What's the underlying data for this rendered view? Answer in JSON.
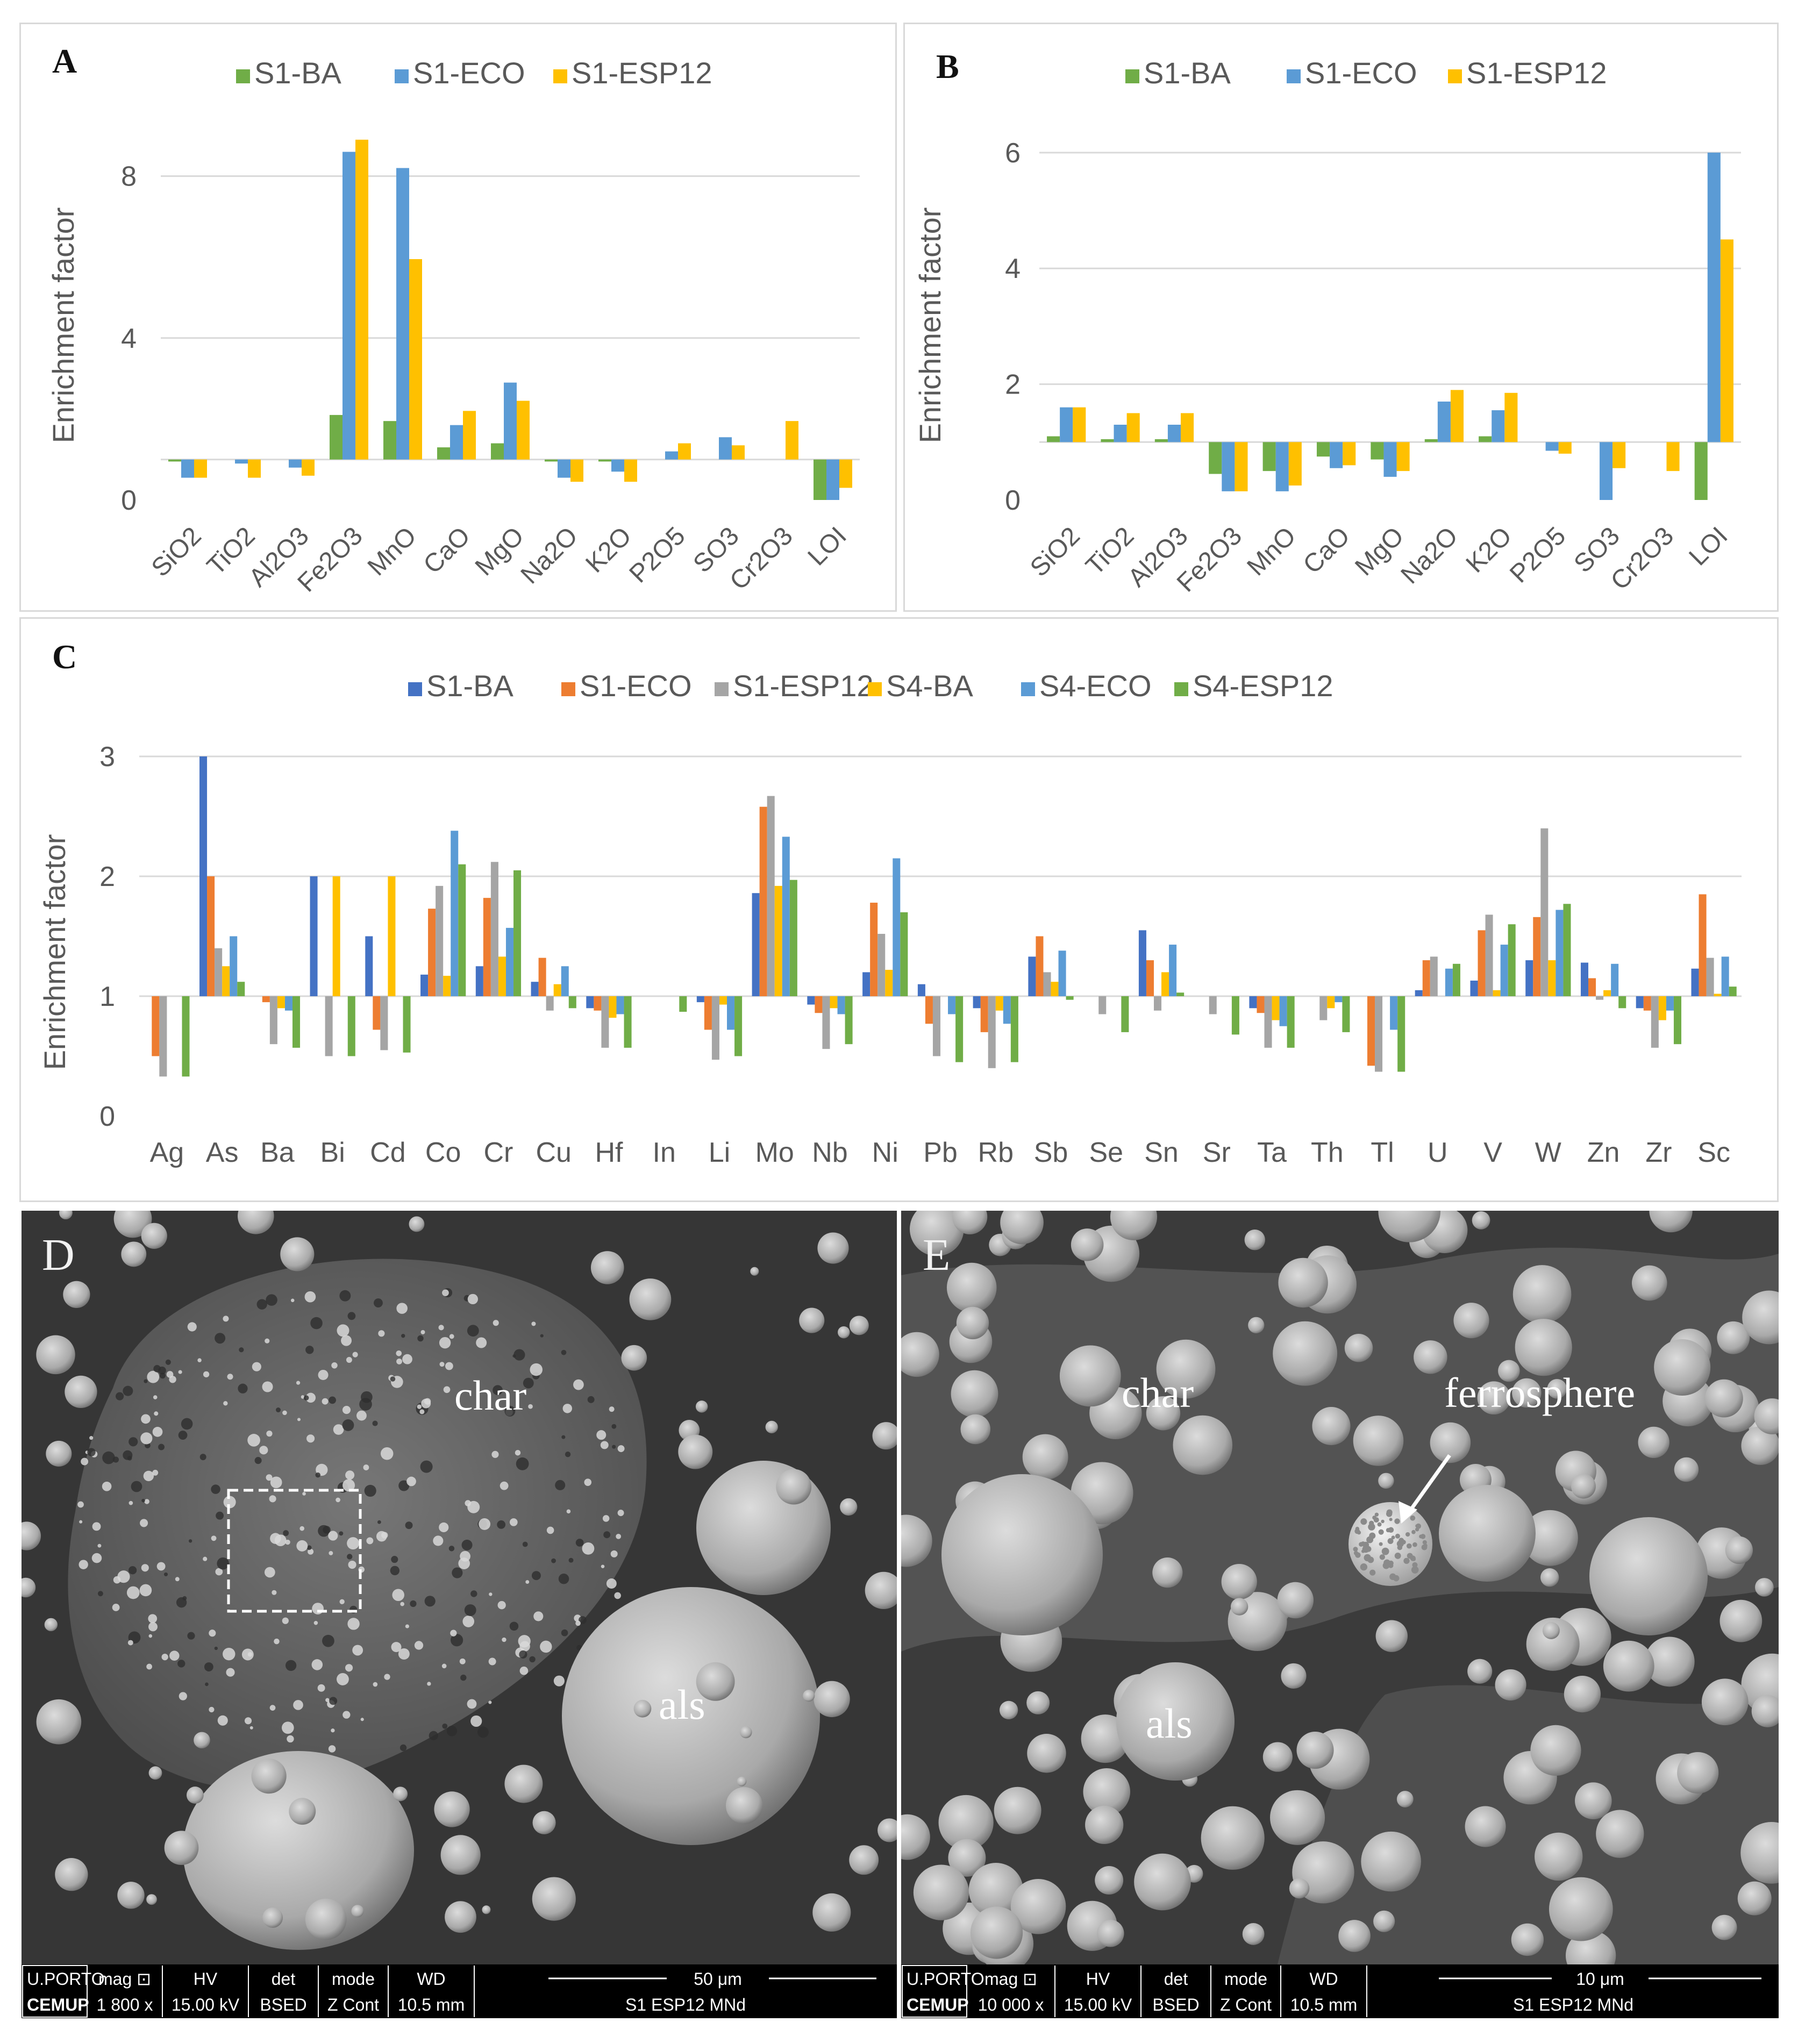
{
  "chart_data": [
    {
      "panel_label": "A",
      "type": "bar",
      "title": "",
      "xlabel": "",
      "ylabel": "Enrichment factor",
      "ylim": [
        0,
        10
      ],
      "yticks": [
        "0",
        "4",
        "8"
      ],
      "baseline": 1,
      "grid": true,
      "legend_position": "top",
      "categories": [
        "SiO2",
        "TiO2",
        "Al2O3",
        "Fe2O3",
        "MnO",
        "CaO",
        "MgO",
        "Na2O",
        "K2O",
        "P2O5",
        "SO3",
        "Cr2O3",
        "LOI"
      ],
      "series": [
        {
          "name": "S1-BA",
          "color": "#70ad47",
          "values": [
            0.95,
            1.0,
            1.0,
            2.1,
            1.95,
            1.3,
            1.4,
            0.95,
            0.95,
            1.0,
            1.0,
            1.0,
            0.0
          ]
        },
        {
          "name": "S1-ECO",
          "color": "#5b9bd5",
          "values": [
            0.55,
            0.9,
            0.8,
            8.6,
            8.2,
            1.85,
            2.9,
            0.55,
            0.7,
            1.2,
            1.55,
            1.0,
            0.0
          ]
        },
        {
          "name": "S1-ESP12",
          "color": "#ffc000",
          "values": [
            0.55,
            0.55,
            0.6,
            8.9,
            5.95,
            2.2,
            2.45,
            0.45,
            0.45,
            1.4,
            1.35,
            1.95,
            0.3
          ]
        }
      ]
    },
    {
      "panel_label": "B",
      "type": "bar",
      "title": "",
      "xlabel": "",
      "ylabel": "Enrichment factor",
      "ylim": [
        0,
        6.5
      ],
      "yticks": [
        "0",
        "2",
        "4",
        "6"
      ],
      "baseline": 1,
      "grid": true,
      "legend_position": "top",
      "categories": [
        "SiO2",
        "TiO2",
        "Al2O3",
        "Fe2O3",
        "MnO",
        "CaO",
        "MgO",
        "Na2O",
        "K2O",
        "P2O5",
        "SO3",
        "Cr2O3",
        "LOI"
      ],
      "series": [
        {
          "name": "S1-BA",
          "color": "#70ad47",
          "values": [
            1.1,
            1.05,
            1.05,
            0.45,
            0.5,
            0.75,
            0.7,
            1.05,
            1.1,
            1.0,
            1.0,
            1.0,
            0.0
          ]
        },
        {
          "name": "S1-ECO",
          "color": "#5b9bd5",
          "values": [
            1.6,
            1.3,
            1.3,
            0.15,
            0.15,
            0.55,
            0.4,
            1.7,
            1.55,
            0.85,
            0.0,
            1.0,
            6.0
          ]
        },
        {
          "name": "S1-ESP12",
          "color": "#ffc000",
          "values": [
            1.6,
            1.5,
            1.5,
            0.15,
            0.25,
            0.6,
            0.5,
            1.9,
            1.85,
            0.8,
            0.55,
            0.5,
            4.5
          ]
        }
      ]
    },
    {
      "panel_label": "C",
      "type": "bar",
      "title": "",
      "xlabel": "",
      "ylabel": "Enrichment factor",
      "ylim": [
        0,
        3
      ],
      "yticks": [
        "0",
        "1",
        "2",
        "3"
      ],
      "baseline": 1,
      "grid": true,
      "legend_position": "top",
      "categories": [
        "Ag",
        "As",
        "Ba",
        "Bi",
        "Cd",
        "Co",
        "Cr",
        "Cu",
        "Hf",
        "In",
        "Li",
        "Mo",
        "Nb",
        "Ni",
        "Pb",
        "Rb",
        "Sb",
        "Se",
        "Sn",
        "Sr",
        "Ta",
        "Th",
        "Tl",
        "U",
        "V",
        "W",
        "Zn",
        "Zr",
        "Sc"
      ],
      "series": [
        {
          "name": "S1-BA",
          "color": "#4472c4",
          "values": [
            1.0,
            3.0,
            1.0,
            2.0,
            1.5,
            1.18,
            1.25,
            1.12,
            0.9,
            1.0,
            0.95,
            1.86,
            0.93,
            1.2,
            1.1,
            0.9,
            1.33,
            1.0,
            1.55,
            1.0,
            0.9,
            1.0,
            1.0,
            1.05,
            1.13,
            1.3,
            1.28,
            0.9,
            1.23
          ]
        },
        {
          "name": "S1-ECO",
          "color": "#ed7d31",
          "values": [
            0.5,
            2.0,
            0.95,
            1.0,
            0.72,
            1.73,
            1.82,
            1.32,
            0.88,
            1.0,
            0.72,
            2.58,
            0.86,
            1.78,
            0.77,
            0.7,
            1.5,
            1.0,
            1.3,
            1.0,
            0.86,
            1.0,
            0.42,
            1.3,
            1.55,
            1.66,
            1.15,
            0.88,
            1.85
          ]
        },
        {
          "name": "S1-ESP12",
          "color": "#a5a5a5",
          "values": [
            0.33,
            1.4,
            0.6,
            0.5,
            0.55,
            1.92,
            2.12,
            0.88,
            0.57,
            1.0,
            0.47,
            2.67,
            0.56,
            1.52,
            0.5,
            0.4,
            1.2,
            0.85,
            0.88,
            0.85,
            0.57,
            0.8,
            0.37,
            1.33,
            1.68,
            2.4,
            0.97,
            0.57,
            1.32
          ]
        },
        {
          "name": "S4-BA",
          "color": "#ffc000",
          "values": [
            1.0,
            1.25,
            0.9,
            2.0,
            2.0,
            1.17,
            1.33,
            1.1,
            0.82,
            1.0,
            0.93,
            1.92,
            0.9,
            1.22,
            1.0,
            0.88,
            1.12,
            1.0,
            1.2,
            1.0,
            0.8,
            0.9,
            1.0,
            1.0,
            1.05,
            1.3,
            1.05,
            0.8,
            1.02
          ]
        },
        {
          "name": "S4-ECO",
          "color": "#5b9bd5",
          "values": [
            1.0,
            1.5,
            0.88,
            1.0,
            1.0,
            2.38,
            1.57,
            1.25,
            0.85,
            1.0,
            0.72,
            2.33,
            0.85,
            2.15,
            0.85,
            0.77,
            1.38,
            1.0,
            1.43,
            1.0,
            0.75,
            0.95,
            0.72,
            1.23,
            1.43,
            1.72,
            1.27,
            0.88,
            1.33
          ]
        },
        {
          "name": "S4-ESP12",
          "color": "#70ad47",
          "values": [
            0.33,
            1.12,
            0.57,
            0.5,
            0.53,
            2.1,
            2.05,
            0.9,
            0.57,
            0.87,
            0.5,
            1.97,
            0.6,
            1.7,
            0.45,
            0.45,
            0.97,
            0.7,
            1.03,
            0.68,
            0.57,
            0.7,
            0.37,
            1.27,
            1.6,
            1.77,
            0.9,
            0.6,
            1.08
          ]
        }
      ]
    }
  ],
  "sem": {
    "D": {
      "label": "D",
      "annotations": [
        "char",
        "als"
      ],
      "databar": {
        "org": "U.PORTO",
        "center": "CEMUP",
        "mag_head": "mag ⊡",
        "mag": "1 800 x",
        "hv_head": "HV",
        "hv": "15.00 kV",
        "det_head": "det",
        "det": "BSED",
        "mode_head": "mode",
        "mode": "Z Cont",
        "wd_head": "WD",
        "wd": "10.5 mm",
        "scale": "50 μm",
        "sample": "S1 ESP12 MNd"
      }
    },
    "E": {
      "label": "E",
      "annotations": [
        "char",
        "ferrosphere",
        "als"
      ],
      "databar": {
        "org": "U.PORTO",
        "center": "CEMUP",
        "mag_head": "mag ⊡",
        "mag": "10 000 x",
        "hv_head": "HV",
        "hv": "15.00 kV",
        "det_head": "det",
        "det": "BSED",
        "mode_head": "mode",
        "mode": "Z Cont",
        "wd_head": "WD",
        "wd": "10.5 mm",
        "scale": "10 μm",
        "sample": "S1 ESP12 MNd"
      }
    }
  }
}
